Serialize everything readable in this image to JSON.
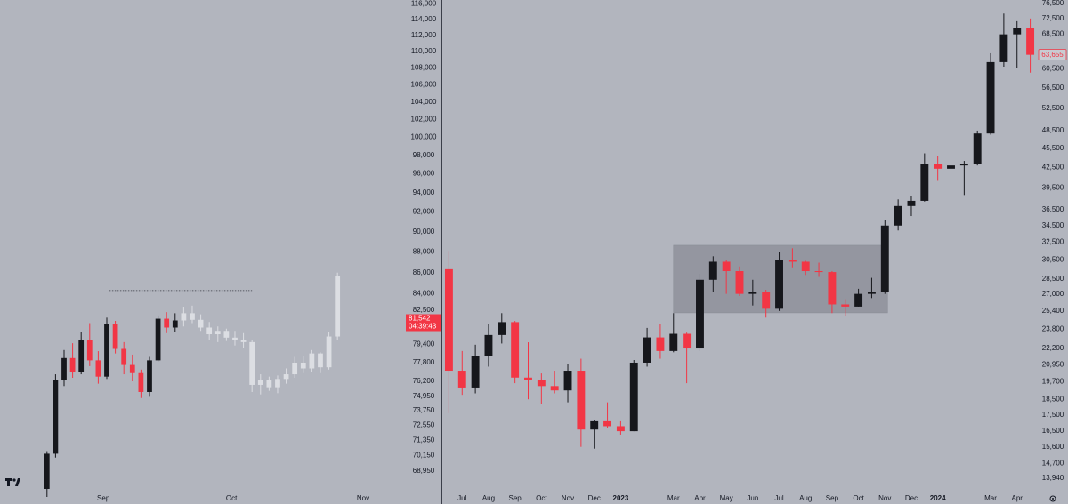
{
  "chart_data": [
    {
      "type": "candlestick",
      "log": true,
      "grid": false,
      "xlim": [
        0,
        47.4
      ],
      "xticks": [
        {
          "value": 12.1,
          "label": "Sep"
        },
        {
          "value": 27.1,
          "label": "Oct"
        },
        {
          "value": 42.5,
          "label": "Nov"
        }
      ],
      "ylim": [
        67800,
        116500
      ],
      "yticks": [
        {
          "value": 116000,
          "label": "116,000"
        },
        {
          "value": 114000,
          "label": "114,000"
        },
        {
          "value": 112000,
          "label": "112,000"
        },
        {
          "value": 110000,
          "label": "110,000"
        },
        {
          "value": 108000,
          "label": "108,000"
        },
        {
          "value": 106000,
          "label": "106,000"
        },
        {
          "value": 104000,
          "label": "104,000"
        },
        {
          "value": 102000,
          "label": "102,000"
        },
        {
          "value": 100000,
          "label": "100,000"
        },
        {
          "value": 98000,
          "label": "98,000"
        },
        {
          "value": 96000,
          "label": "96,000"
        },
        {
          "value": 94000,
          "label": "94,000"
        },
        {
          "value": 92000,
          "label": "92,000"
        },
        {
          "value": 90000,
          "label": "90,000"
        },
        {
          "value": 88000,
          "label": "88,000"
        },
        {
          "value": 86000,
          "label": "86,000"
        },
        {
          "value": 84000,
          "label": "84,000"
        },
        {
          "value": 82500,
          "label": "82,500"
        },
        {
          "value": 79400,
          "label": "79,400"
        },
        {
          "value": 77800,
          "label": "77,800"
        },
        {
          "value": 76200,
          "label": "76,200"
        },
        {
          "value": 74950,
          "label": "74,950"
        },
        {
          "value": 73750,
          "label": "73,750"
        },
        {
          "value": 72550,
          "label": "72,550"
        },
        {
          "value": 71350,
          "label": "71,350"
        },
        {
          "value": 70150,
          "label": "70,150"
        },
        {
          "value": 68950,
          "label": "68,950"
        }
      ],
      "level": {
        "value": 84300,
        "x": [
          12.8,
          29.5
        ]
      },
      "last_price": {
        "value": 81542,
        "label": "81,542"
      },
      "countdown": "04:39:43",
      "series": [
        {
          "up_color": "#16171c",
          "down_color": "#f23645",
          "x": [
            5.5,
            6.5,
            7.5,
            8.5,
            9.5,
            10.5,
            11.5,
            12.5,
            13.5,
            14.5,
            15.5,
            16.5,
            17.5,
            18.5,
            19.5,
            20.5
          ],
          "open": [
            67600,
            70300,
            76300,
            78200,
            77000,
            79800,
            78000,
            76600,
            81200,
            79000,
            77600,
            76900,
            75300,
            78000,
            81700,
            80900
          ],
          "high": [
            70500,
            76800,
            78900,
            79500,
            80500,
            81300,
            78800,
            81800,
            81500,
            79600,
            78500,
            77200,
            78300,
            82000,
            82300,
            82200
          ],
          "low": [
            67000,
            70000,
            75800,
            76500,
            76800,
            77500,
            76000,
            76400,
            78600,
            76800,
            76200,
            74800,
            74900,
            77900,
            80400,
            80500
          ],
          "close": [
            70300,
            76300,
            78200,
            77000,
            79800,
            78000,
            76600,
            81200,
            79000,
            77600,
            76900,
            75300,
            78000,
            81700,
            80900,
            81542
          ]
        },
        {
          "up_color": "#dcdee3",
          "down_color": "#dcdee3",
          "x": [
            21.5,
            22.5,
            23.5,
            24.5,
            25.5,
            26.5,
            27.5,
            28.5,
            29.5,
            30.5,
            31.5,
            32.5,
            33.5,
            34.5,
            35.5,
            36.5,
            37.5,
            38.5,
            39.5
          ],
          "open": [
            81542,
            82200,
            81600,
            80900,
            80300,
            80600,
            80000,
            79800,
            79600,
            75900,
            76300,
            75700,
            76400,
            76800,
            77800,
            77300,
            78600,
            77400,
            80100
          ],
          "high": [
            82800,
            82900,
            82100,
            81400,
            81000,
            80800,
            80600,
            80400,
            79800,
            76800,
            76600,
            76700,
            77300,
            78300,
            78400,
            78900,
            78700,
            80500,
            86000
          ],
          "low": [
            81000,
            81300,
            80600,
            79800,
            79600,
            79700,
            79300,
            79100,
            75300,
            75100,
            75400,
            75200,
            76000,
            76500,
            76900,
            77000,
            76900,
            77200,
            79800
          ],
          "close": [
            82200,
            81600,
            80900,
            80300,
            80600,
            80000,
            79800,
            79600,
            75900,
            76300,
            75700,
            76400,
            76800,
            77800,
            77300,
            78600,
            77400,
            80100,
            85700
          ]
        }
      ]
    },
    {
      "type": "candlestick",
      "log": true,
      "grid": false,
      "xlim": [
        0,
        45
      ],
      "xticks": [
        {
          "value": 1.5,
          "label": "Jul"
        },
        {
          "value": 3.5,
          "label": "Aug"
        },
        {
          "value": 5.5,
          "label": "Sep"
        },
        {
          "value": 7.5,
          "label": "Oct"
        },
        {
          "value": 9.5,
          "label": "Nov"
        },
        {
          "value": 11.5,
          "label": "Dec"
        },
        {
          "value": 13.5,
          "label": "2023"
        },
        {
          "value": 17.5,
          "label": "Mar"
        },
        {
          "value": 19.5,
          "label": "Apr"
        },
        {
          "value": 21.5,
          "label": "May"
        },
        {
          "value": 23.5,
          "label": "Jun"
        },
        {
          "value": 25.5,
          "label": "Jul"
        },
        {
          "value": 27.5,
          "label": "Aug"
        },
        {
          "value": 29.5,
          "label": "Sep"
        },
        {
          "value": 31.5,
          "label": "Oct"
        },
        {
          "value": 33.5,
          "label": "Nov"
        },
        {
          "value": 35.5,
          "label": "Dec"
        },
        {
          "value": 37.5,
          "label": "2024"
        },
        {
          "value": 41.5,
          "label": "Mar"
        },
        {
          "value": 43.5,
          "label": "Apr"
        }
      ],
      "ylim": [
        13545,
        77480
      ],
      "yticks": [
        {
          "value": 76500,
          "label": "76,500"
        },
        {
          "value": 72500,
          "label": "72,500"
        },
        {
          "value": 68500,
          "label": "68,500"
        },
        {
          "value": 60500,
          "label": "60,500"
        },
        {
          "value": 56500,
          "label": "56,500"
        },
        {
          "value": 52500,
          "label": "52,500"
        },
        {
          "value": 48500,
          "label": "48,500"
        },
        {
          "value": 45500,
          "label": "45,500"
        },
        {
          "value": 42500,
          "label": "42,500"
        },
        {
          "value": 39500,
          "label": "39,500"
        },
        {
          "value": 36500,
          "label": "36,500"
        },
        {
          "value": 34500,
          "label": "34,500"
        },
        {
          "value": 32500,
          "label": "32,500"
        },
        {
          "value": 30500,
          "label": "30,500"
        },
        {
          "value": 28500,
          "label": "28,500"
        },
        {
          "value": 27000,
          "label": "27,000"
        },
        {
          "value": 25400,
          "label": "25,400"
        },
        {
          "value": 23800,
          "label": "23,800"
        },
        {
          "value": 22200,
          "label": "22,200"
        },
        {
          "value": 20950,
          "label": "20,950"
        },
        {
          "value": 19700,
          "label": "19,700"
        },
        {
          "value": 18500,
          "label": "18,500"
        },
        {
          "value": 17500,
          "label": "17,500"
        },
        {
          "value": 16500,
          "label": "16,500"
        },
        {
          "value": 15600,
          "label": "15,600"
        },
        {
          "value": 14700,
          "label": "14,700"
        },
        {
          "value": 13940,
          "label": "13,940"
        }
      ],
      "box": {
        "x": [
          17.5,
          33.7
        ],
        "y": [
          25230,
          32140
        ]
      },
      "last_price": {
        "value": 63655,
        "label": "63,655"
      },
      "series": [
        {
          "up_color": "#16171c",
          "down_color": "#f23645",
          "x": [
            0.5,
            1.5,
            2.5,
            3.5,
            4.5,
            5.5,
            6.5,
            7.5,
            8.5,
            9.5,
            10.5,
            11.5,
            12.5,
            13.5,
            14.5,
            15.5,
            16.5,
            17.5,
            18.5,
            19.5,
            20.5,
            21.5,
            22.5,
            23.5,
            24.5,
            25.5,
            26.5,
            27.5,
            28.5,
            29.5,
            30.5,
            31.5,
            32.5,
            33.5,
            34.5,
            35.5,
            36.5,
            37.5,
            38.5,
            39.5,
            40.5,
            41.5,
            42.5,
            43.5,
            44.5
          ],
          "open": [
            29500,
            20500,
            19300,
            21600,
            23300,
            24400,
            20000,
            19800,
            19400,
            19100,
            20500,
            16600,
            17100,
            16800,
            16500,
            21100,
            23100,
            22000,
            23400,
            22200,
            28400,
            30300,
            29300,
            27000,
            27200,
            25600,
            30500,
            30300,
            29300,
            29200,
            26000,
            25800,
            27000,
            27200,
            34500,
            37000,
            37700,
            43000,
            42300,
            42800,
            43000,
            48000,
            62000,
            68500,
            70000
          ],
          "high": [
            31500,
            22000,
            22500,
            24200,
            25200,
            24500,
            22700,
            20300,
            20500,
            21000,
            21400,
            17200,
            18300,
            17100,
            21300,
            23900,
            24200,
            25200,
            23500,
            29000,
            30900,
            30500,
            29800,
            28400,
            27400,
            31400,
            31800,
            30400,
            30200,
            29300,
            26500,
            27500,
            28600,
            35200,
            37900,
            38400,
            44700,
            44300,
            49000,
            43500,
            48500,
            64000,
            73800,
            71800,
            72500
          ],
          "low": [
            17600,
            18800,
            18900,
            20800,
            22600,
            19600,
            18500,
            18200,
            18900,
            18300,
            15600,
            15500,
            16700,
            16300,
            16500,
            20800,
            21400,
            21900,
            19600,
            22000,
            27200,
            27000,
            26800,
            25900,
            24800,
            25400,
            29700,
            28900,
            28700,
            25200,
            24900,
            25800,
            26600,
            27000,
            33900,
            35700,
            37600,
            40500,
            40700,
            38500,
            42800,
            47800,
            61000,
            60800,
            59700
          ],
          "close": [
            20500,
            19300,
            21600,
            23300,
            24400,
            20000,
            19800,
            19400,
            19100,
            20500,
            16600,
            17100,
            16800,
            16500,
            21100,
            23100,
            22000,
            23400,
            22200,
            28400,
            30300,
            29300,
            27000,
            27200,
            25600,
            30500,
            30300,
            29300,
            29200,
            26000,
            25800,
            27000,
            27200,
            34500,
            37000,
            37700,
            43000,
            42300,
            42800,
            43000,
            48000,
            62000,
            68500,
            70000,
            63655
          ]
        }
      ]
    }
  ]
}
